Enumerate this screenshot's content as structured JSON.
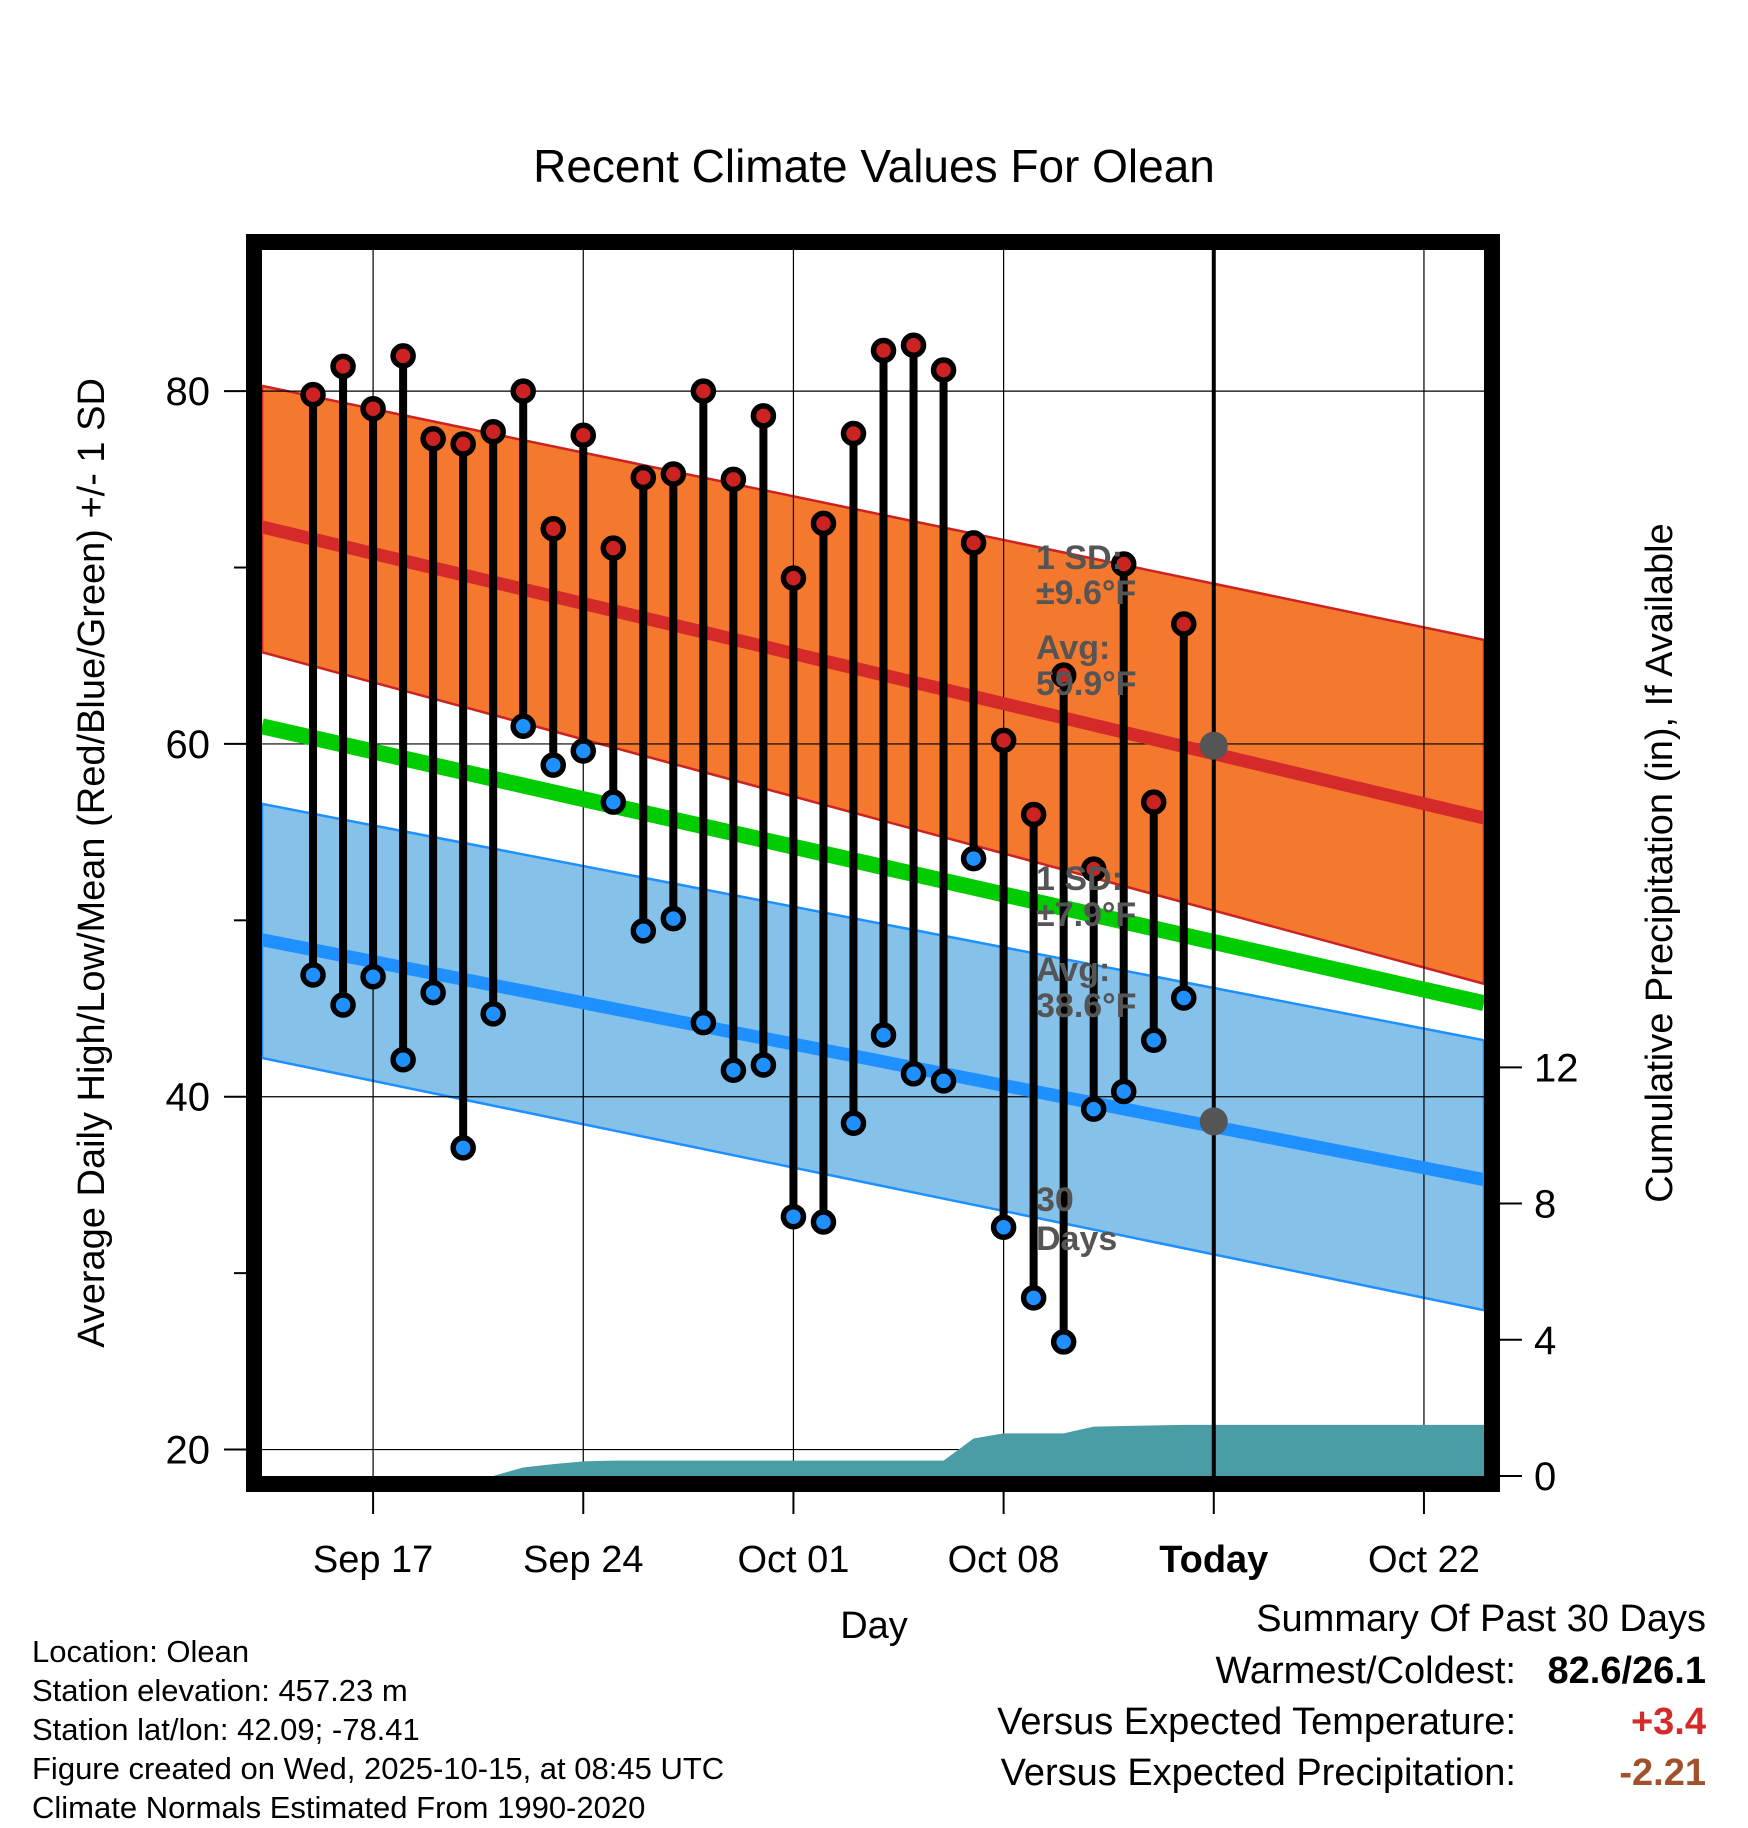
{
  "chart_data": {
    "type": "line",
    "title": "Recent Climate Values For Olean",
    "xlabel": "Day",
    "ylabel": "Average Daily High/Low/Mean (Red/Blue/Green) +/- 1 SD",
    "ylabel_right": "Cumulative Precipitation (in), If Available",
    "x_tick_labels": [
      "Sep 17",
      "Sep 24",
      "Oct 01",
      "Oct 08",
      "Today",
      "Oct 22"
    ],
    "x_tick_days": [
      3,
      10,
      17,
      24,
      31,
      38
    ],
    "x_range_days": [
      -0.7,
      40
    ],
    "y_ticks": [
      20,
      40,
      60,
      80
    ],
    "y_minor_ticks": [
      30,
      50,
      70
    ],
    "ylim": [
      18.5,
      88
    ],
    "y2_ticks": [
      0,
      4,
      8,
      12
    ],
    "y2lim": [
      0,
      36
    ],
    "dates": [
      "Sep 15",
      "Sep 16",
      "Sep 17",
      "Sep 18",
      "Sep 19",
      "Sep 20",
      "Sep 21",
      "Sep 22",
      "Sep 23",
      "Sep 24",
      "Sep 25",
      "Sep 26",
      "Sep 27",
      "Sep 28",
      "Sep 29",
      "Sep 30",
      "Oct 01",
      "Oct 02",
      "Oct 03",
      "Oct 04",
      "Oct 05",
      "Oct 06",
      "Oct 07",
      "Oct 08",
      "Oct 09",
      "Oct 10",
      "Oct 11",
      "Oct 12",
      "Oct 13",
      "Oct 14"
    ],
    "series": [
      {
        "name": "Daily High",
        "color": "#cc2222",
        "values": [
          79.8,
          81.4,
          79.0,
          82.0,
          77.3,
          77.0,
          77.7,
          80.0,
          72.2,
          77.5,
          71.1,
          75.1,
          75.3,
          80.0,
          75.0,
          78.6,
          69.4,
          72.5,
          77.6,
          82.3,
          82.6,
          81.2,
          71.4,
          60.2,
          56.0,
          63.9,
          52.9,
          70.2,
          56.7,
          66.8
        ]
      },
      {
        "name": "Daily Low",
        "color": "#1e90ff",
        "values": [
          46.9,
          45.2,
          46.8,
          42.1,
          45.9,
          37.1,
          44.7,
          61.0,
          58.8,
          59.6,
          56.7,
          49.4,
          50.1,
          44.2,
          41.5,
          41.8,
          33.2,
          32.9,
          38.5,
          43.5,
          41.3,
          40.9,
          53.5,
          32.6,
          28.6,
          26.1,
          39.3,
          40.3,
          43.2,
          45.6
        ]
      }
    ],
    "normals": {
      "high_mean": [
        72.3,
        55.8
      ],
      "high_sd_band": [
        [
          80.3,
          65.2
        ],
        [
          65.9,
          46.4
        ]
      ],
      "mean": [
        61.0,
        45.3
      ],
      "low_mean": [
        48.9,
        35.3
      ],
      "low_sd_band": [
        [
          56.6,
          42.2
        ],
        [
          43.2,
          27.9
        ]
      ],
      "days": [
        -0.7,
        40
      ]
    },
    "precip_cumulative": {
      "days": [
        -0.7,
        7.0,
        8.0,
        9.0,
        10.0,
        11.0,
        22.0,
        23.0,
        24.0,
        26.0,
        27.0,
        28.0,
        30.0,
        40.0
      ],
      "values": [
        0.0,
        0.0,
        0.25,
        0.35,
        0.43,
        0.45,
        0.45,
        1.1,
        1.25,
        1.25,
        1.45,
        1.47,
        1.5,
        1.5
      ]
    },
    "annotations": {
      "high_sd_label": "1 SD:",
      "high_sd_value": "±9.6°F",
      "high_avg_label": "Avg:",
      "high_avg_value": "59.9°F",
      "today_high_avg": 59.9,
      "low_sd_label": "1 SD:",
      "low_sd_value": "±7.9°F",
      "low_avg_label": "Avg:",
      "low_avg_value": "38.6°F",
      "today_low_avg": 38.6,
      "precip_label_1": "30",
      "precip_label_2": "Days"
    }
  },
  "info": {
    "location": "Location: Olean",
    "elevation": "Station elevation: 457.23 m",
    "latlon": "Station lat/lon: 42.09; -78.41",
    "created": "Figure created on Wed, 2025-10-15, at 08:45 UTC",
    "normals": "Climate Normals Estimated From 1990-2020"
  },
  "summary": {
    "title": "Summary Of Past 30 Days",
    "warmest_label": "Warmest/Coldest:",
    "warmest_value": "82.6/26.1",
    "temp_label": "Versus Expected Temperature:",
    "temp_value": "+3.4",
    "precip_label": "Versus Expected Precipitation:",
    "precip_value": "-2.21"
  },
  "colors": {
    "high_band": "#f4782d",
    "high_line": "#d42a2a",
    "low_band": "#85c1e9",
    "low_line": "#1e90ff",
    "mean_line": "#00cc00",
    "precip": "#4a9ca5",
    "temp_value": "#d42a2a",
    "precip_value": "#a0522d"
  }
}
